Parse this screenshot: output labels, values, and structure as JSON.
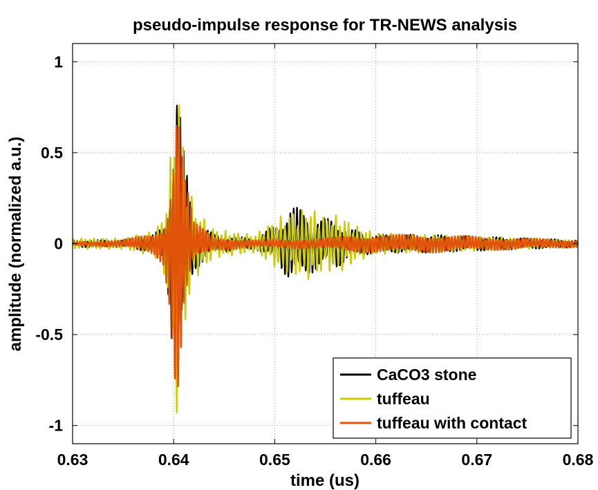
{
  "chart_data": {
    "type": "line",
    "title": "pseudo-impulse response for TR-NEWS analysis",
    "xlabel": "time (us)",
    "ylabel": "amplitude (normalized a.u.)",
    "xlim": [
      0.63,
      0.68
    ],
    "ylim": [
      -1.1,
      1.1
    ],
    "xticks": [
      0.63,
      0.64,
      0.65,
      0.66,
      0.67,
      0.68
    ],
    "xtick_labels": [
      "0.63",
      "0.64",
      "0.65",
      "0.66",
      "0.67",
      "0.68"
    ],
    "yticks": [
      -1,
      -0.5,
      0,
      0.5,
      1
    ],
    "ytick_labels": [
      "-1",
      "-0.5",
      "0",
      "0.5",
      "1"
    ],
    "grid": true,
    "legend_position": "bottom-right",
    "series": [
      {
        "name": "CaCO3 stone",
        "color": "#000000",
        "envelope": [
          [
            0.63,
            0.02
          ],
          [
            0.635,
            0.02
          ],
          [
            0.638,
            0.05
          ],
          [
            0.639,
            0.1
          ],
          [
            0.6395,
            0.3
          ],
          [
            0.64,
            0.7
          ],
          [
            0.6403,
            1.0
          ],
          [
            0.6406,
            0.8
          ],
          [
            0.641,
            0.5
          ],
          [
            0.642,
            0.15
          ],
          [
            0.644,
            0.05
          ],
          [
            0.648,
            0.03
          ],
          [
            0.6505,
            0.12
          ],
          [
            0.6515,
            0.22
          ],
          [
            0.653,
            0.18
          ],
          [
            0.6545,
            0.14
          ],
          [
            0.656,
            0.14
          ],
          [
            0.6575,
            0.08
          ],
          [
            0.66,
            0.05
          ],
          [
            0.665,
            0.05
          ],
          [
            0.67,
            0.04
          ],
          [
            0.675,
            0.03
          ],
          [
            0.68,
            0.02
          ]
        ]
      },
      {
        "name": "tuffeau",
        "color": "#cccc00",
        "envelope": [
          [
            0.63,
            0.03
          ],
          [
            0.635,
            0.03
          ],
          [
            0.638,
            0.07
          ],
          [
            0.639,
            0.15
          ],
          [
            0.6395,
            0.35
          ],
          [
            0.64,
            0.7
          ],
          [
            0.6403,
            0.95
          ],
          [
            0.6406,
            0.9
          ],
          [
            0.641,
            0.5
          ],
          [
            0.642,
            0.2
          ],
          [
            0.644,
            0.08
          ],
          [
            0.648,
            0.05
          ],
          [
            0.6505,
            0.15
          ],
          [
            0.652,
            0.18
          ],
          [
            0.6535,
            0.2
          ],
          [
            0.655,
            0.15
          ],
          [
            0.6565,
            0.16
          ],
          [
            0.658,
            0.1
          ],
          [
            0.66,
            0.06
          ],
          [
            0.665,
            0.05
          ],
          [
            0.67,
            0.04
          ],
          [
            0.675,
            0.03
          ],
          [
            0.68,
            0.02
          ]
        ]
      },
      {
        "name": "tuffeau with contact",
        "color": "#e0540a",
        "envelope": [
          [
            0.63,
            0.01
          ],
          [
            0.635,
            0.02
          ],
          [
            0.638,
            0.06
          ],
          [
            0.639,
            0.12
          ],
          [
            0.6395,
            0.3
          ],
          [
            0.64,
            0.65
          ],
          [
            0.6403,
            1.0
          ],
          [
            0.6406,
            0.85
          ],
          [
            0.641,
            0.45
          ],
          [
            0.642,
            0.12
          ],
          [
            0.644,
            0.04
          ],
          [
            0.648,
            0.02
          ],
          [
            0.655,
            0.03
          ],
          [
            0.658,
            0.05
          ],
          [
            0.662,
            0.05
          ],
          [
            0.666,
            0.05
          ],
          [
            0.67,
            0.04
          ],
          [
            0.675,
            0.03
          ],
          [
            0.68,
            0.02
          ]
        ]
      }
    ]
  }
}
